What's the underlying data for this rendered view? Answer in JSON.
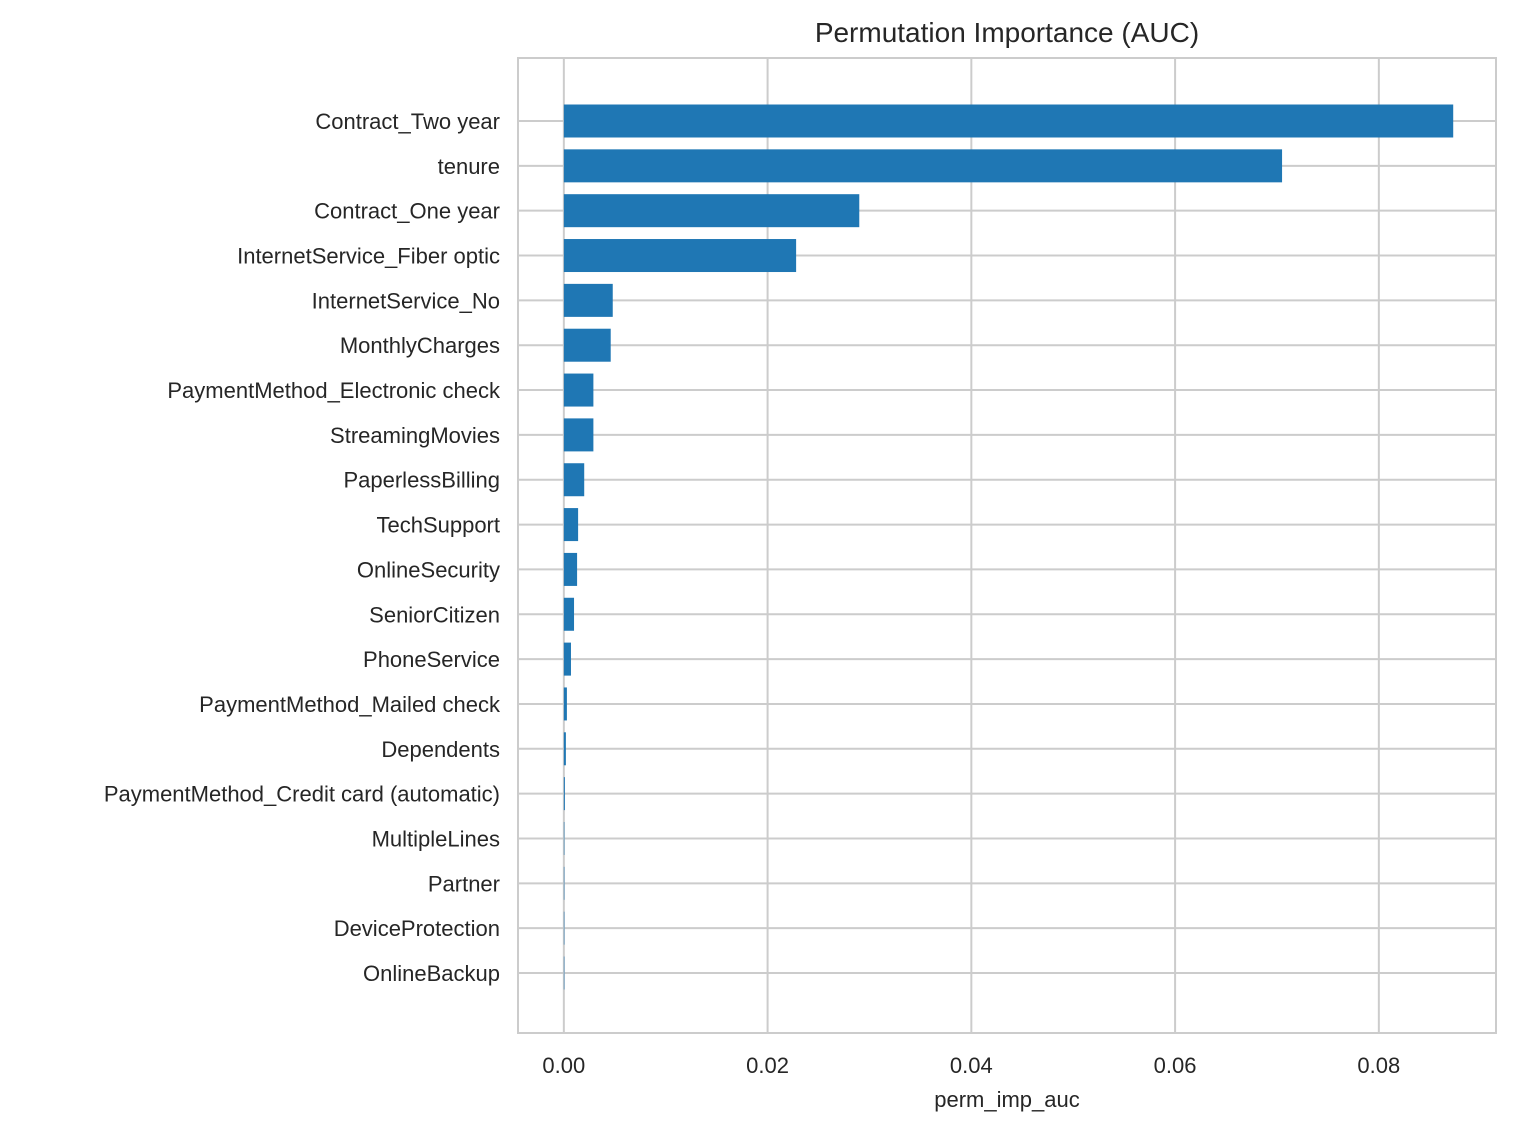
{
  "chart_data": {
    "type": "bar",
    "orientation": "horizontal",
    "title": "Permutation Importance (AUC)",
    "xlabel": "perm_imp_auc",
    "ylabel": "",
    "xlim": [
      -0.0045,
      0.0915
    ],
    "xticks": [
      0.0,
      0.02,
      0.04,
      0.06,
      0.08
    ],
    "xtick_labels": [
      "0.00",
      "0.02",
      "0.04",
      "0.06",
      "0.08"
    ],
    "grid": true,
    "bar_color": "#1f77b4",
    "categories": [
      "Contract_Two year",
      "tenure",
      "Contract_One year",
      "InternetService_Fiber optic",
      "InternetService_No",
      "MonthlyCharges",
      "PaymentMethod_Electronic check",
      "StreamingMovies",
      "PaperlessBilling",
      "TechSupport",
      "OnlineSecurity",
      "SeniorCitizen",
      "PhoneService",
      "PaymentMethod_Mailed check",
      "Dependents",
      "PaymentMethod_Credit card (automatic)",
      "MultipleLines",
      "Partner",
      "DeviceProtection",
      "OnlineBackup"
    ],
    "values": [
      0.0873,
      0.0705,
      0.029,
      0.0228,
      0.0048,
      0.0046,
      0.0029,
      0.0029,
      0.002,
      0.0014,
      0.0013,
      0.001,
      0.0007,
      0.0003,
      0.0002,
      0.0001,
      5e-05,
      3e-05,
      2e-05,
      1e-05
    ]
  }
}
